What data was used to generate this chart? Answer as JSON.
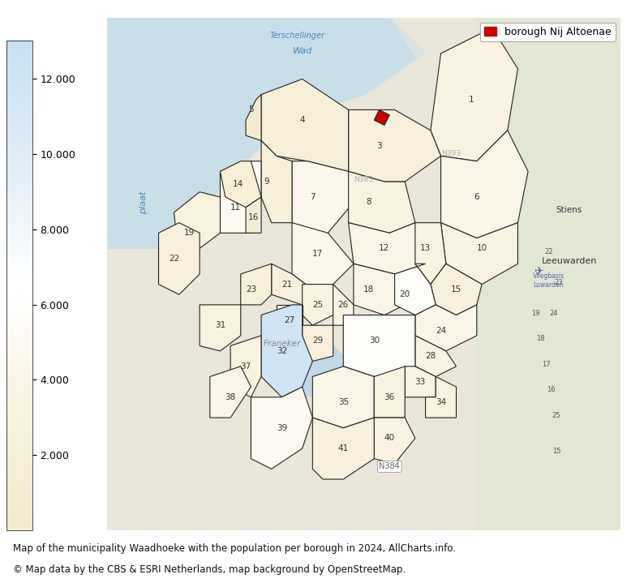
{
  "title_line1": "Map of the municipality Waadhoeke with the population per borough in 2024, AllCharts.info.",
  "title_line2": "© Map data by the CBS & ESRI Netherlands, map background by OpenStreetMap.",
  "legend_label": "borough Nij Altoenae",
  "colorbar_ticks": [
    2000,
    4000,
    6000,
    8000,
    10000,
    12000
  ],
  "colorbar_ticklabels": [
    "2.000",
    "4.000",
    "6.000",
    "8.000",
    "10.000",
    "12.000"
  ],
  "colorbar_vmin": 0,
  "colorbar_vmax": 13000,
  "highlight_color": "#cc0000",
  "highlight_marker": "s",
  "border_color": "#222222",
  "map_bg_color": "#e8e0c8",
  "water_color": "#b8d4e8",
  "fig_bg_color": "#ffffff",
  "figsize": [
    7.94,
    7.19
  ],
  "dpi": 100,
  "caption_fontsize": 8.5,
  "legend_fontsize": 9,
  "colorbar_label_fontsize": 9
}
